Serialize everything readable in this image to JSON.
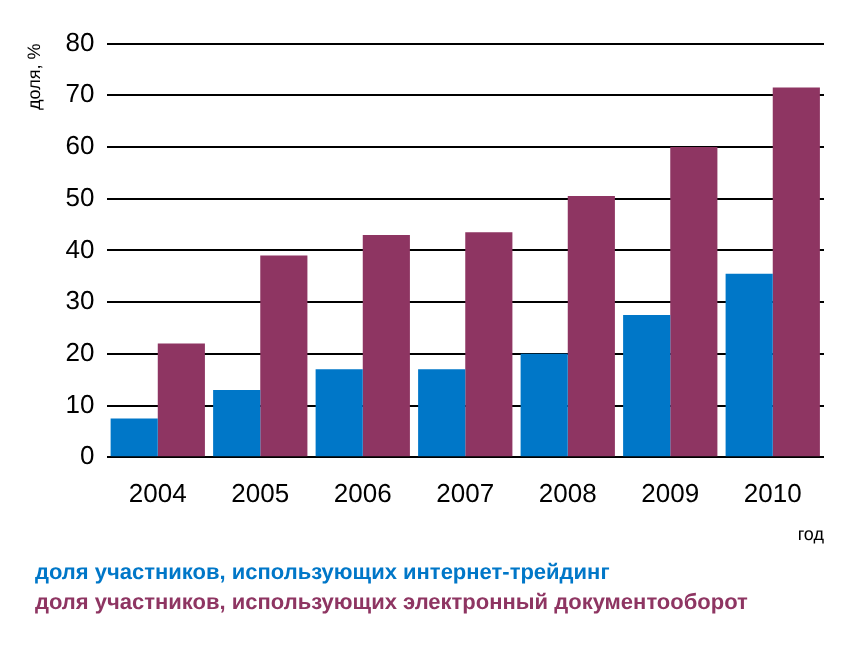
{
  "chart_data": {
    "type": "bar",
    "categories": [
      "2004",
      "2005",
      "2006",
      "2007",
      "2008",
      "2009",
      "2010"
    ],
    "series": [
      {
        "name": "доля участников, использующих интернет-трейдинг",
        "color": "#0077c8",
        "values": [
          7.5,
          13,
          17,
          17,
          20,
          27.5,
          35.5
        ]
      },
      {
        "name": "доля участников, использующих электронный документооборот",
        "color": "#8e3562",
        "values": [
          22,
          39,
          43,
          43.5,
          50.5,
          60,
          71.5
        ]
      }
    ],
    "xlabel": "год",
    "ylabel": "доля, %",
    "ylim": [
      0,
      80
    ],
    "yticks": [
      0,
      10,
      20,
      30,
      40,
      50,
      60,
      70,
      80
    ],
    "grid": "y",
    "legend": "bottom"
  }
}
